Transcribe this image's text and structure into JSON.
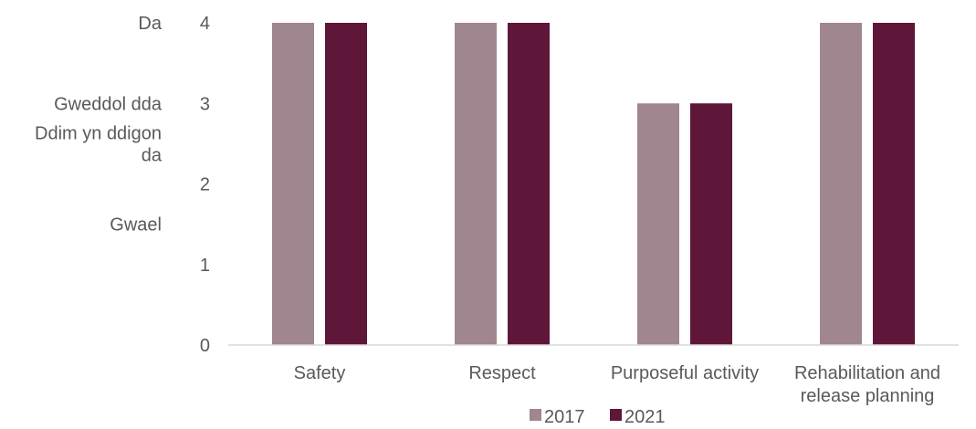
{
  "chart_data": {
    "type": "bar",
    "categories": [
      [
        "Safety"
      ],
      [
        "Respect"
      ],
      [
        "Purposeful activity"
      ],
      [
        "Rehabilitation and",
        "release planning"
      ]
    ],
    "series": [
      {
        "name": "2017",
        "values": [
          4,
          4,
          3,
          4
        ],
        "color": "#a0868e"
      },
      {
        "name": "2021",
        "values": [
          4,
          4,
          3,
          4
        ],
        "color": "#5e1738"
      }
    ],
    "ylim": [
      0,
      4
    ],
    "yticks": [
      0,
      1,
      2,
      3,
      4
    ],
    "rating_labels": [
      {
        "value": 4,
        "lines": [
          "Da"
        ]
      },
      {
        "value": 3,
        "lines": [
          "Gweddol dda"
        ]
      },
      {
        "value": 2.5,
        "lines": [
          "Ddim yn ddigon",
          "da"
        ]
      },
      {
        "value": 1.5,
        "lines": [
          "Gwael"
        ]
      }
    ],
    "grid": false,
    "legend_position": "bottom",
    "title": "",
    "xlabel": "",
    "ylabel": ""
  }
}
